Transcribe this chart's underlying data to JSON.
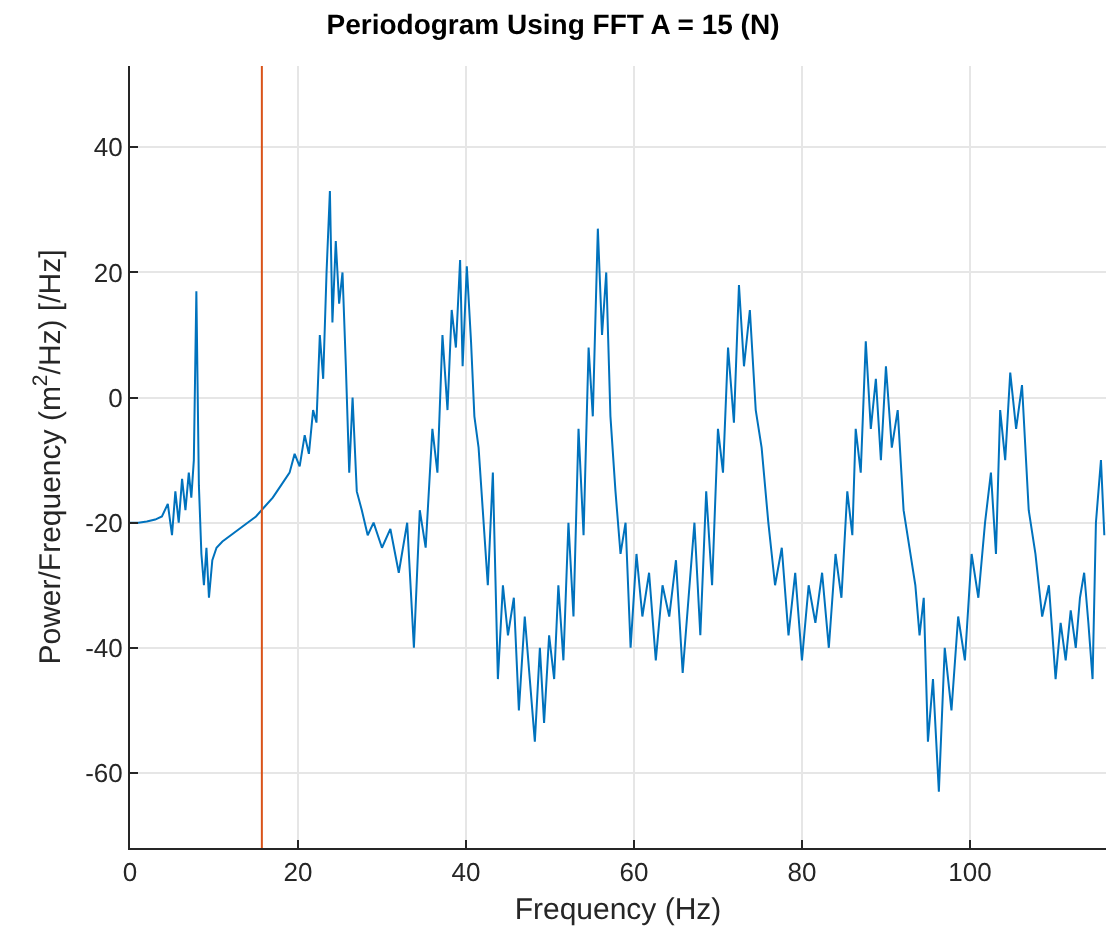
{
  "chart_data": {
    "type": "line",
    "title": "Periodogram Using FFT A = 15 (N)",
    "xlabel": "Frequency (Hz)",
    "ylabel": "Power/Frequency (m$^{2}$/Hz) [/Hz]",
    "x": [
      0,
      1,
      2,
      3,
      3.8,
      4.5,
      5,
      5.4,
      5.8,
      6.2,
      6.6,
      7,
      7.3,
      7.6,
      7.9,
      8.2,
      8.5,
      8.8,
      9.1,
      9.4,
      9.8,
      10.3,
      11,
      12,
      13,
      14,
      15,
      16,
      17,
      18,
      19,
      19.6,
      20.2,
      20.8,
      21.3,
      21.8,
      22.2,
      22.6,
      23,
      23.4,
      23.8,
      24.1,
      24.5,
      24.9,
      25.3,
      25.7,
      26.1,
      26.5,
      27,
      27.6,
      28.3,
      29,
      30,
      31,
      32,
      33,
      33.8,
      34.5,
      35.2,
      36,
      36.6,
      37.2,
      37.8,
      38.3,
      38.8,
      39.3,
      39.6,
      40.1,
      40.6,
      41,
      41.5,
      42,
      42.6,
      43.2,
      43.8,
      44.4,
      45,
      45.7,
      46.3,
      47,
      47.6,
      48.2,
      48.8,
      49.3,
      49.9,
      50.5,
      51,
      51.6,
      52.2,
      52.8,
      53.4,
      54,
      54.6,
      55.1,
      55.7,
      56.2,
      56.7,
      57.2,
      57.8,
      58.4,
      59,
      59.6,
      60.3,
      61,
      61.8,
      62.6,
      63.4,
      64.2,
      65,
      65.8,
      66.5,
      67.2,
      67.9,
      68.6,
      69.3,
      70,
      70.6,
      71.2,
      71.9,
      72.5,
      73.1,
      73.8,
      74.5,
      75.2,
      76,
      76.8,
      77.6,
      78.4,
      79.2,
      80,
      80.8,
      81.6,
      82.4,
      83.2,
      84,
      84.7,
      85.4,
      86,
      86.4,
      87,
      87.6,
      88.2,
      88.8,
      89.4,
      90,
      90.7,
      91.4,
      92.1,
      92.8,
      93.5,
      94,
      94.5,
      95,
      95.6,
      96.3,
      97,
      97.8,
      98.6,
      99.4,
      100.2,
      101,
      101.8,
      102.5,
      103.1,
      103.6,
      104.2,
      104.8,
      105.5,
      106.2,
      107,
      107.8,
      108.6,
      109.4,
      110.2,
      110.8,
      111.4,
      112,
      112.6,
      113.1,
      113.6,
      114.1,
      114.6,
      115,
      115.3,
      115.6,
      116
    ],
    "series": [
      {
        "color": "#0072bd",
        "values": [
          -20,
          -20,
          -19.8,
          -19.5,
          -19,
          -17,
          -22,
          -15,
          -20,
          -13,
          -18,
          -12,
          -16,
          -10,
          17,
          -14,
          -25,
          -30,
          -24,
          -32,
          -26,
          -24,
          -23,
          -22,
          -21,
          -20,
          -19,
          -17.5,
          -16,
          -14,
          -12,
          -9,
          -11,
          -6,
          -9,
          -2,
          -4,
          10,
          3,
          20,
          33,
          12,
          25,
          15,
          20,
          5,
          -12,
          0,
          -15,
          -18,
          -22,
          -20,
          -24,
          -21,
          -28,
          -20,
          -40,
          -18,
          -24,
          -5,
          -12,
          10,
          -2,
          14,
          8,
          22,
          5,
          21,
          9,
          -3,
          -8,
          -18,
          -30,
          -12,
          -45,
          -30,
          -38,
          -32,
          -50,
          -35,
          -45,
          -55,
          -40,
          -52,
          -38,
          -45,
          -30,
          -42,
          -20,
          -35,
          -5,
          -22,
          8,
          -3,
          27,
          10,
          20,
          -3,
          -15,
          -25,
          -20,
          -40,
          -25,
          -35,
          -28,
          -42,
          -30,
          -35,
          -26,
          -44,
          -32,
          -20,
          -38,
          -15,
          -30,
          -5,
          -12,
          8,
          -4,
          18,
          5,
          14,
          -2,
          -8,
          -20,
          -30,
          -24,
          -38,
          -28,
          -42,
          -30,
          -36,
          -28,
          -40,
          -25,
          -32,
          -15,
          -22,
          -5,
          -12,
          9,
          -5,
          3,
          -10,
          5,
          -8,
          -2,
          -18,
          -24,
          -30,
          -38,
          -32,
          -55,
          -45,
          -63,
          -40,
          -50,
          -35,
          -42,
          -25,
          -32,
          -20,
          -12,
          -25,
          -2,
          -10,
          4,
          -5,
          2,
          -18,
          -25,
          -35,
          -30,
          -45,
          -36,
          -42,
          -34,
          -40,
          -32,
          -28,
          -36,
          -45,
          -20,
          -15,
          -10,
          -22
        ]
      }
    ],
    "xlim": [
      0,
      116.2
    ],
    "ylim": [
      -72,
      53
    ],
    "xticks": [
      0,
      20,
      40,
      60,
      80,
      100
    ],
    "yticks": [
      -60,
      -40,
      -20,
      0,
      20,
      40
    ],
    "grid": true,
    "marker": "none",
    "line_style": "solid",
    "ref_lines": [
      {
        "axis": "x",
        "value": 15.7,
        "color": "#d95319"
      }
    ]
  }
}
